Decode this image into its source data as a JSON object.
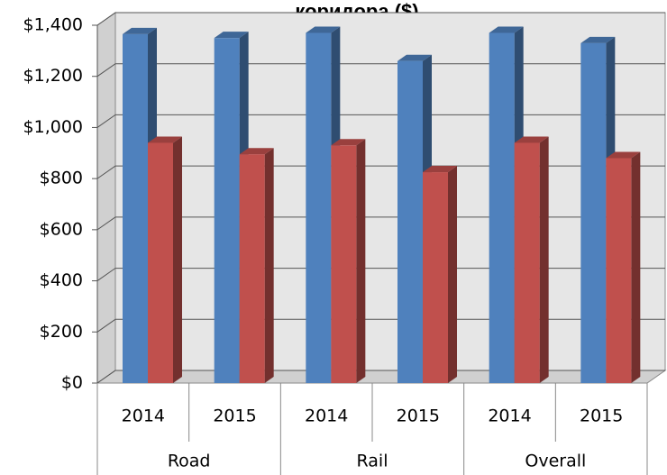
{
  "chart_data": {
    "type": "bar3d",
    "title": "коридора ($)",
    "categories": [
      "2014",
      "2015",
      "2014",
      "2015",
      "2014",
      "2015"
    ],
    "groups": [
      "Road",
      "Rail",
      "Overall"
    ],
    "series": [
      {
        "color": "#4f81bd",
        "values": [
          1365,
          1350,
          1370,
          1260,
          1370,
          1330
        ]
      },
      {
        "color": "#c0504d",
        "values": [
          940,
          895,
          930,
          825,
          940,
          880
        ]
      }
    ],
    "ylim": [
      0,
      1400
    ],
    "yticks": [
      {
        "value": 0,
        "label": "$0"
      },
      {
        "value": 200,
        "label": "$200"
      },
      {
        "value": 400,
        "label": "$400"
      },
      {
        "value": 600,
        "label": "$600"
      },
      {
        "value": 800,
        "label": "$800"
      },
      {
        "value": 1000,
        "label": "$1,000"
      },
      {
        "value": 1200,
        "label": "$1,200"
      },
      {
        "value": 1400,
        "label": "$1,400"
      }
    ],
    "grid": true
  }
}
